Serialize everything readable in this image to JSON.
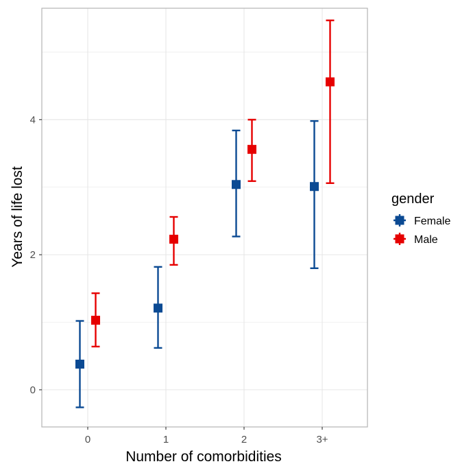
{
  "chart_data": {
    "type": "scatter",
    "xlabel": "Number of comorbidities",
    "ylabel": "Years of life lost",
    "categories": [
      "0",
      "1",
      "2",
      "3+"
    ],
    "y_ticks": [
      "0",
      "2",
      "4"
    ],
    "ylim": [
      -0.55,
      5.65
    ],
    "grid": true,
    "error_bars": true,
    "legend": {
      "title": "gender",
      "position": "right"
    },
    "series": [
      {
        "name": "Female",
        "color": "#0b4a93",
        "values": [
          0.38,
          1.21,
          3.04,
          3.01
        ],
        "lower": [
          -0.26,
          0.62,
          2.27,
          1.8
        ],
        "upper": [
          1.02,
          1.82,
          3.84,
          3.98
        ]
      },
      {
        "name": "Male",
        "color": "#e60000",
        "values": [
          1.03,
          2.23,
          3.56,
          4.56
        ],
        "lower": [
          0.64,
          1.85,
          3.09,
          3.06
        ],
        "upper": [
          1.43,
          2.56,
          4.0,
          5.47
        ]
      }
    ]
  }
}
